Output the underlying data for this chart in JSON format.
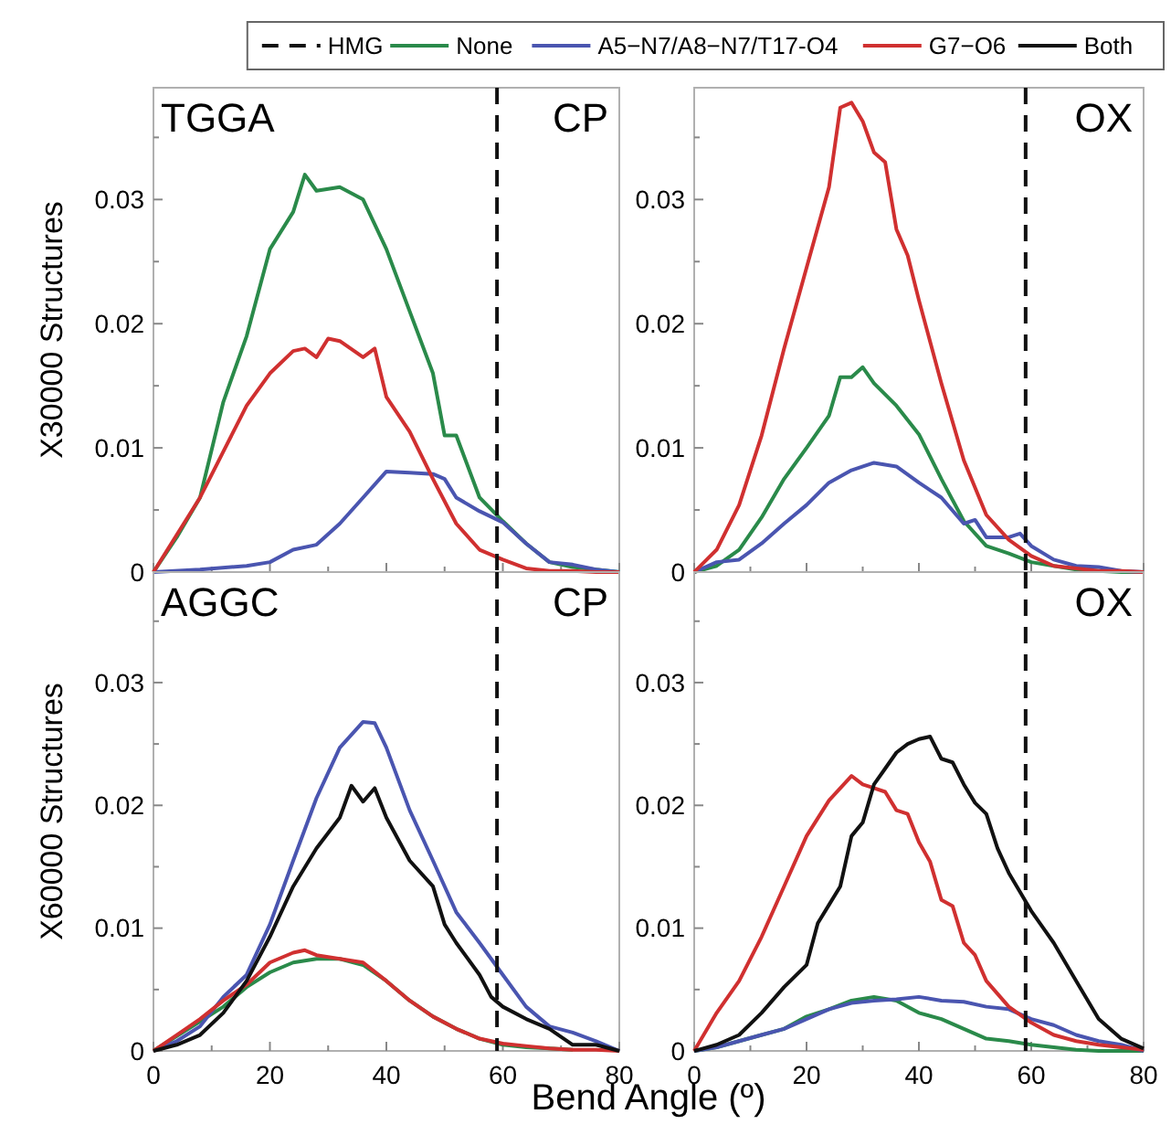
{
  "chart_data": [
    {
      "type": "line",
      "ylabel": "X30000 Structures",
      "annotations": [
        "TGGA",
        "CP"
      ],
      "xlim": [
        0,
        80
      ],
      "xticks": [
        0,
        {
          "value": 10,
          "label": null
        },
        20,
        {
          "value": 30,
          "label": null
        },
        40,
        {
          "value": 50,
          "label": null
        },
        60,
        {
          "value": 70,
          "label": null
        },
        80
      ],
      "ylim": [
        0,
        0.039
      ],
      "yticks": [
        0,
        {
          "value": 0.005,
          "label": null
        },
        0.01,
        {
          "value": 0.015,
          "label": null
        },
        0.02,
        {
          "value": 0.025,
          "label": null
        },
        0.03,
        {
          "value": 0.035,
          "label": null
        }
      ],
      "tick_labels": "y",
      "legend": "top",
      "grid": false,
      "marker": "none",
      "line_style": "solid",
      "ref_lines": [
        {
          "axis": "x",
          "value": 59,
          "label": "HMG",
          "color": "#111111",
          "line_style": "dashed"
        }
      ],
      "series": [
        {
          "name": "None",
          "color": "#2a8a4a",
          "x": [
            0,
            4,
            8,
            12,
            16,
            20,
            24,
            26,
            28,
            32,
            36,
            40,
            44,
            48,
            50,
            52,
            56,
            60,
            64,
            68,
            72,
            76,
            80
          ],
          "values": [
            0,
            0.0028,
            0.006,
            0.0137,
            0.019,
            0.026,
            0.029,
            0.032,
            0.0307,
            0.031,
            0.03,
            0.026,
            0.021,
            0.016,
            0.011,
            0.011,
            0.006,
            0.0041,
            0.0023,
            0.0008,
            0.0004,
            0.0002,
            0
          ]
        },
        {
          "name": "A5−N7/A8−N7/T17-O4",
          "color": "#4a55b0",
          "x": [
            0,
            8,
            16,
            20,
            24,
            28,
            32,
            36,
            40,
            44,
            48,
            50,
            52,
            56,
            60,
            64,
            68,
            72,
            76,
            80
          ],
          "values": [
            0,
            0.0002,
            0.0005,
            0.0008,
            0.0018,
            0.0022,
            0.0039,
            0.006,
            0.0081,
            0.008,
            0.0079,
            0.0075,
            0.006,
            0.0049,
            0.004,
            0.0023,
            0.0008,
            0.0006,
            0.0002,
            0
          ]
        },
        {
          "name": "G7−O6",
          "color": "#d03030",
          "x": [
            0,
            4,
            8,
            12,
            16,
            20,
            24,
            26,
            28,
            30,
            32,
            36,
            38,
            40,
            44,
            48,
            52,
            56,
            60,
            64,
            68,
            72,
            76,
            80
          ],
          "values": [
            0,
            0.003,
            0.006,
            0.0097,
            0.0134,
            0.016,
            0.0178,
            0.018,
            0.0173,
            0.0188,
            0.0186,
            0.0173,
            0.018,
            0.0141,
            0.0113,
            0.0075,
            0.0039,
            0.0018,
            0.001,
            0.0003,
            0.0001,
            0.0001,
            0,
            0
          ]
        }
      ]
    },
    {
      "type": "line",
      "annotations": [
        "OX"
      ],
      "xlim": [
        0,
        80
      ],
      "xticks": [
        0,
        {
          "value": 10,
          "label": null
        },
        20,
        {
          "value": 30,
          "label": null
        },
        40,
        {
          "value": 50,
          "label": null
        },
        60,
        {
          "value": 70,
          "label": null
        },
        80
      ],
      "ylim": [
        0,
        0.039
      ],
      "yticks": [
        0,
        {
          "value": 0.005,
          "label": null
        },
        0.01,
        {
          "value": 0.015,
          "label": null
        },
        0.02,
        {
          "value": 0.025,
          "label": null
        },
        0.03,
        {
          "value": 0.035,
          "label": null
        }
      ],
      "tick_labels": "y",
      "legend": "top",
      "grid": false,
      "marker": "none",
      "line_style": "solid",
      "ref_lines": [
        {
          "axis": "x",
          "value": 59,
          "color": "#111111",
          "line_style": "dashed"
        }
      ],
      "series": [
        {
          "name": "None",
          "color": "#2a8a4a",
          "x": [
            0,
            4,
            8,
            12,
            16,
            20,
            24,
            26,
            28,
            30,
            32,
            36,
            40,
            44,
            48,
            52,
            56,
            60,
            64,
            68,
            72,
            76,
            80
          ],
          "values": [
            0,
            0.0005,
            0.0018,
            0.0044,
            0.0075,
            0.01,
            0.0126,
            0.0157,
            0.0157,
            0.0165,
            0.0152,
            0.0134,
            0.0111,
            0.0075,
            0.0041,
            0.0021,
            0.0015,
            0.0008,
            0.0005,
            0.0002,
            0.0001,
            0,
            0
          ]
        },
        {
          "name": "A5−N7/A8−N7/T17-O4",
          "color": "#4a55b0",
          "x": [
            0,
            4,
            8,
            12,
            16,
            20,
            24,
            28,
            32,
            36,
            40,
            44,
            48,
            50,
            52,
            56,
            58,
            60,
            64,
            68,
            72,
            76,
            80
          ],
          "values": [
            0,
            0.0008,
            0.001,
            0.0023,
            0.0039,
            0.0054,
            0.0072,
            0.0082,
            0.0088,
            0.0085,
            0.0072,
            0.006,
            0.0039,
            0.0042,
            0.0028,
            0.0028,
            0.0031,
            0.0021,
            0.001,
            0.0005,
            0.0004,
            0.0001,
            0
          ]
        },
        {
          "name": "G7−O6",
          "color": "#d03030",
          "x": [
            0,
            4,
            8,
            12,
            16,
            20,
            24,
            26,
            28,
            30,
            32,
            34,
            36,
            38,
            40,
            44,
            48,
            52,
            56,
            60,
            64,
            68,
            72,
            76,
            80
          ],
          "values": [
            0,
            0.0018,
            0.0054,
            0.011,
            0.018,
            0.0245,
            0.031,
            0.0374,
            0.0378,
            0.0363,
            0.0338,
            0.033,
            0.0276,
            0.0255,
            0.0219,
            0.0152,
            0.009,
            0.0046,
            0.0026,
            0.0013,
            0.0005,
            0.0003,
            0.0001,
            0.0001,
            0
          ]
        }
      ]
    },
    {
      "type": "line",
      "ylabel": "X60000 Structures",
      "xlabel": "Bend Angle (º)",
      "annotations": [
        "AGGC",
        "CP"
      ],
      "xlim": [
        0,
        80
      ],
      "xticks": [
        0,
        {
          "value": 10,
          "label": null
        },
        20,
        {
          "value": 30,
          "label": null
        },
        40,
        {
          "value": 50,
          "label": null
        },
        60,
        {
          "value": 70,
          "label": null
        },
        80
      ],
      "ylim": [
        0,
        0.039
      ],
      "yticks": [
        0,
        {
          "value": 0.005,
          "label": null
        },
        0.01,
        {
          "value": 0.015,
          "label": null
        },
        0.02,
        {
          "value": 0.025,
          "label": null
        },
        0.03,
        {
          "value": 0.035,
          "label": null
        }
      ],
      "legend": "top",
      "grid": false,
      "marker": "none",
      "line_style": "solid",
      "ref_lines": [
        {
          "axis": "x",
          "value": 59,
          "color": "#111111",
          "line_style": "dashed"
        }
      ],
      "series": [
        {
          "name": "None",
          "color": "#2a8a4a",
          "x": [
            0,
            4,
            8,
            12,
            16,
            20,
            24,
            28,
            32,
            36,
            40,
            44,
            48,
            52,
            56,
            60,
            64,
            68,
            72
          ],
          "values": [
            0,
            0.0012,
            0.0024,
            0.0036,
            0.0052,
            0.0064,
            0.0072,
            0.0075,
            0.0075,
            0.007,
            0.0057,
            0.0041,
            0.0028,
            0.0018,
            0.001,
            0.0005,
            0.0003,
            0.0002,
            0.0001
          ]
        },
        {
          "name": "A5−N7/A8−N7/T17-O4",
          "color": "#4a55b0",
          "x": [
            0,
            4,
            8,
            12,
            16,
            20,
            24,
            28,
            32,
            36,
            38,
            40,
            44,
            48,
            52,
            56,
            60,
            64,
            68,
            72,
            76,
            80
          ],
          "values": [
            0,
            0.0008,
            0.002,
            0.0044,
            0.0062,
            0.0103,
            0.0155,
            0.0206,
            0.0247,
            0.0268,
            0.0267,
            0.0247,
            0.0196,
            0.0155,
            0.0113,
            0.0088,
            0.0062,
            0.0036,
            0.002,
            0.0015,
            0.0008,
            0
          ]
        },
        {
          "name": "G7−O6",
          "color": "#d03030",
          "x": [
            0,
            4,
            8,
            12,
            16,
            20,
            24,
            26,
            28,
            32,
            36,
            40,
            44,
            48,
            52,
            56,
            60,
            64,
            68,
            72,
            76,
            80
          ],
          "values": [
            0,
            0.0013,
            0.0026,
            0.0041,
            0.0054,
            0.0072,
            0.008,
            0.0082,
            0.0078,
            0.0075,
            0.0072,
            0.0057,
            0.0041,
            0.0028,
            0.0018,
            0.001,
            0.0006,
            0.0004,
            0.0002,
            0.0001,
            0.0001,
            0
          ]
        },
        {
          "name": "Both",
          "color": "#111111",
          "x": [
            0,
            4,
            8,
            12,
            16,
            20,
            24,
            28,
            32,
            34,
            36,
            38,
            40,
            44,
            48,
            50,
            52,
            56,
            58,
            60,
            64,
            68,
            72,
            76,
            80
          ],
          "values": [
            0,
            0.0005,
            0.0013,
            0.0031,
            0.0057,
            0.0093,
            0.0134,
            0.0165,
            0.019,
            0.0216,
            0.0203,
            0.0214,
            0.019,
            0.0155,
            0.0134,
            0.0103,
            0.0088,
            0.0062,
            0.0044,
            0.0036,
            0.0026,
            0.0018,
            0.0005,
            0.0005,
            0
          ]
        }
      ]
    },
    {
      "type": "line",
      "annotations": [
        "OX"
      ],
      "xlim": [
        0,
        80
      ],
      "xticks": [
        0,
        {
          "value": 10,
          "label": null
        },
        20,
        {
          "value": 30,
          "label": null
        },
        40,
        {
          "value": 50,
          "label": null
        },
        60,
        {
          "value": 70,
          "label": null
        },
        80
      ],
      "ylim": [
        0,
        0.039
      ],
      "yticks": [
        0,
        {
          "value": 0.005,
          "label": null
        },
        0.01,
        {
          "value": 0.015,
          "label": null
        },
        0.02,
        {
          "value": 0.025,
          "label": null
        },
        0.03,
        {
          "value": 0.035,
          "label": null
        }
      ],
      "legend": "top",
      "grid": false,
      "marker": "none",
      "line_style": "solid",
      "ref_lines": [
        {
          "axis": "x",
          "value": 59,
          "color": "#111111",
          "line_style": "dashed"
        }
      ],
      "series": [
        {
          "name": "None",
          "color": "#2a8a4a",
          "x": [
            0,
            4,
            8,
            12,
            16,
            20,
            24,
            28,
            32,
            36,
            40,
            44,
            48,
            52,
            56,
            60,
            64,
            68,
            72,
            76,
            80
          ],
          "values": [
            0,
            0.0003,
            0.0008,
            0.0013,
            0.0018,
            0.0028,
            0.0034,
            0.0041,
            0.0044,
            0.0041,
            0.0031,
            0.0026,
            0.0018,
            0.001,
            0.0008,
            0.0005,
            0.0003,
            0.0001,
            0,
            0,
            0
          ]
        },
        {
          "name": "A5−N7/A8−N7/T17-O4",
          "color": "#4a55b0",
          "x": [
            0,
            4,
            8,
            12,
            16,
            20,
            24,
            28,
            32,
            36,
            40,
            44,
            48,
            52,
            56,
            60,
            64,
            68,
            72,
            76,
            80
          ],
          "values": [
            0,
            0.0003,
            0.0008,
            0.0013,
            0.0018,
            0.0026,
            0.0034,
            0.0039,
            0.0041,
            0.0042,
            0.0044,
            0.0041,
            0.004,
            0.0036,
            0.0034,
            0.0026,
            0.0021,
            0.0013,
            0.0008,
            0.0005,
            0
          ]
        },
        {
          "name": "G7−O6",
          "color": "#d03030",
          "x": [
            0,
            4,
            8,
            12,
            16,
            20,
            24,
            28,
            30,
            32,
            34,
            36,
            38,
            40,
            42,
            44,
            46,
            48,
            50,
            52,
            56,
            60,
            64,
            68,
            72,
            76,
            80
          ],
          "values": [
            0,
            0.0031,
            0.0057,
            0.0093,
            0.0134,
            0.0175,
            0.0204,
            0.0224,
            0.0217,
            0.0214,
            0.0211,
            0.0196,
            0.0193,
            0.017,
            0.0154,
            0.0123,
            0.0118,
            0.0088,
            0.0078,
            0.0057,
            0.0036,
            0.0023,
            0.0013,
            0.0008,
            0.0005,
            0.0003,
            0.0001
          ]
        },
        {
          "name": "Both",
          "color": "#111111",
          "x": [
            0,
            4,
            8,
            12,
            16,
            20,
            22,
            24,
            26,
            28,
            30,
            32,
            34,
            36,
            38,
            40,
            42,
            44,
            46,
            48,
            50,
            52,
            54,
            56,
            60,
            64,
            68,
            72,
            76,
            80
          ],
          "values": [
            0,
            0.0005,
            0.0013,
            0.0031,
            0.0052,
            0.007,
            0.0104,
            0.0119,
            0.0134,
            0.0175,
            0.0186,
            0.0217,
            0.023,
            0.0243,
            0.025,
            0.0254,
            0.0256,
            0.0238,
            0.0235,
            0.0217,
            0.0202,
            0.0193,
            0.0165,
            0.0145,
            0.0114,
            0.0088,
            0.0057,
            0.0026,
            0.001,
            0.0002
          ]
        }
      ]
    }
  ]
}
